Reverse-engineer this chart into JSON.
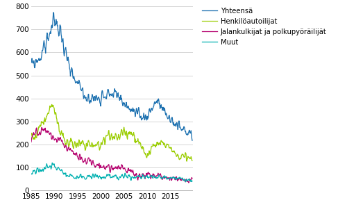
{
  "legend_labels": [
    "Yhteensä",
    "Henkilöautoilijat",
    "Jalankulkijat ja polkupyöräilijät",
    "Muut"
  ],
  "colors": [
    "#1a6faf",
    "#9acd00",
    "#b5006e",
    "#00b0b0"
  ],
  "ylim": [
    0,
    800
  ],
  "yticks": [
    0,
    100,
    200,
    300,
    400,
    500,
    600,
    700,
    800
  ],
  "xlim_start": 1985.0,
  "xlim_end": 2019.75,
  "xticks": [
    1985,
    1990,
    1995,
    2000,
    2005,
    2010,
    2015
  ],
  "figsize": [
    5.0,
    3.08
  ],
  "dpi": 100,
  "linewidth": 0.9,
  "background_color": "#ffffff",
  "grid_color": "#d0d0d0"
}
